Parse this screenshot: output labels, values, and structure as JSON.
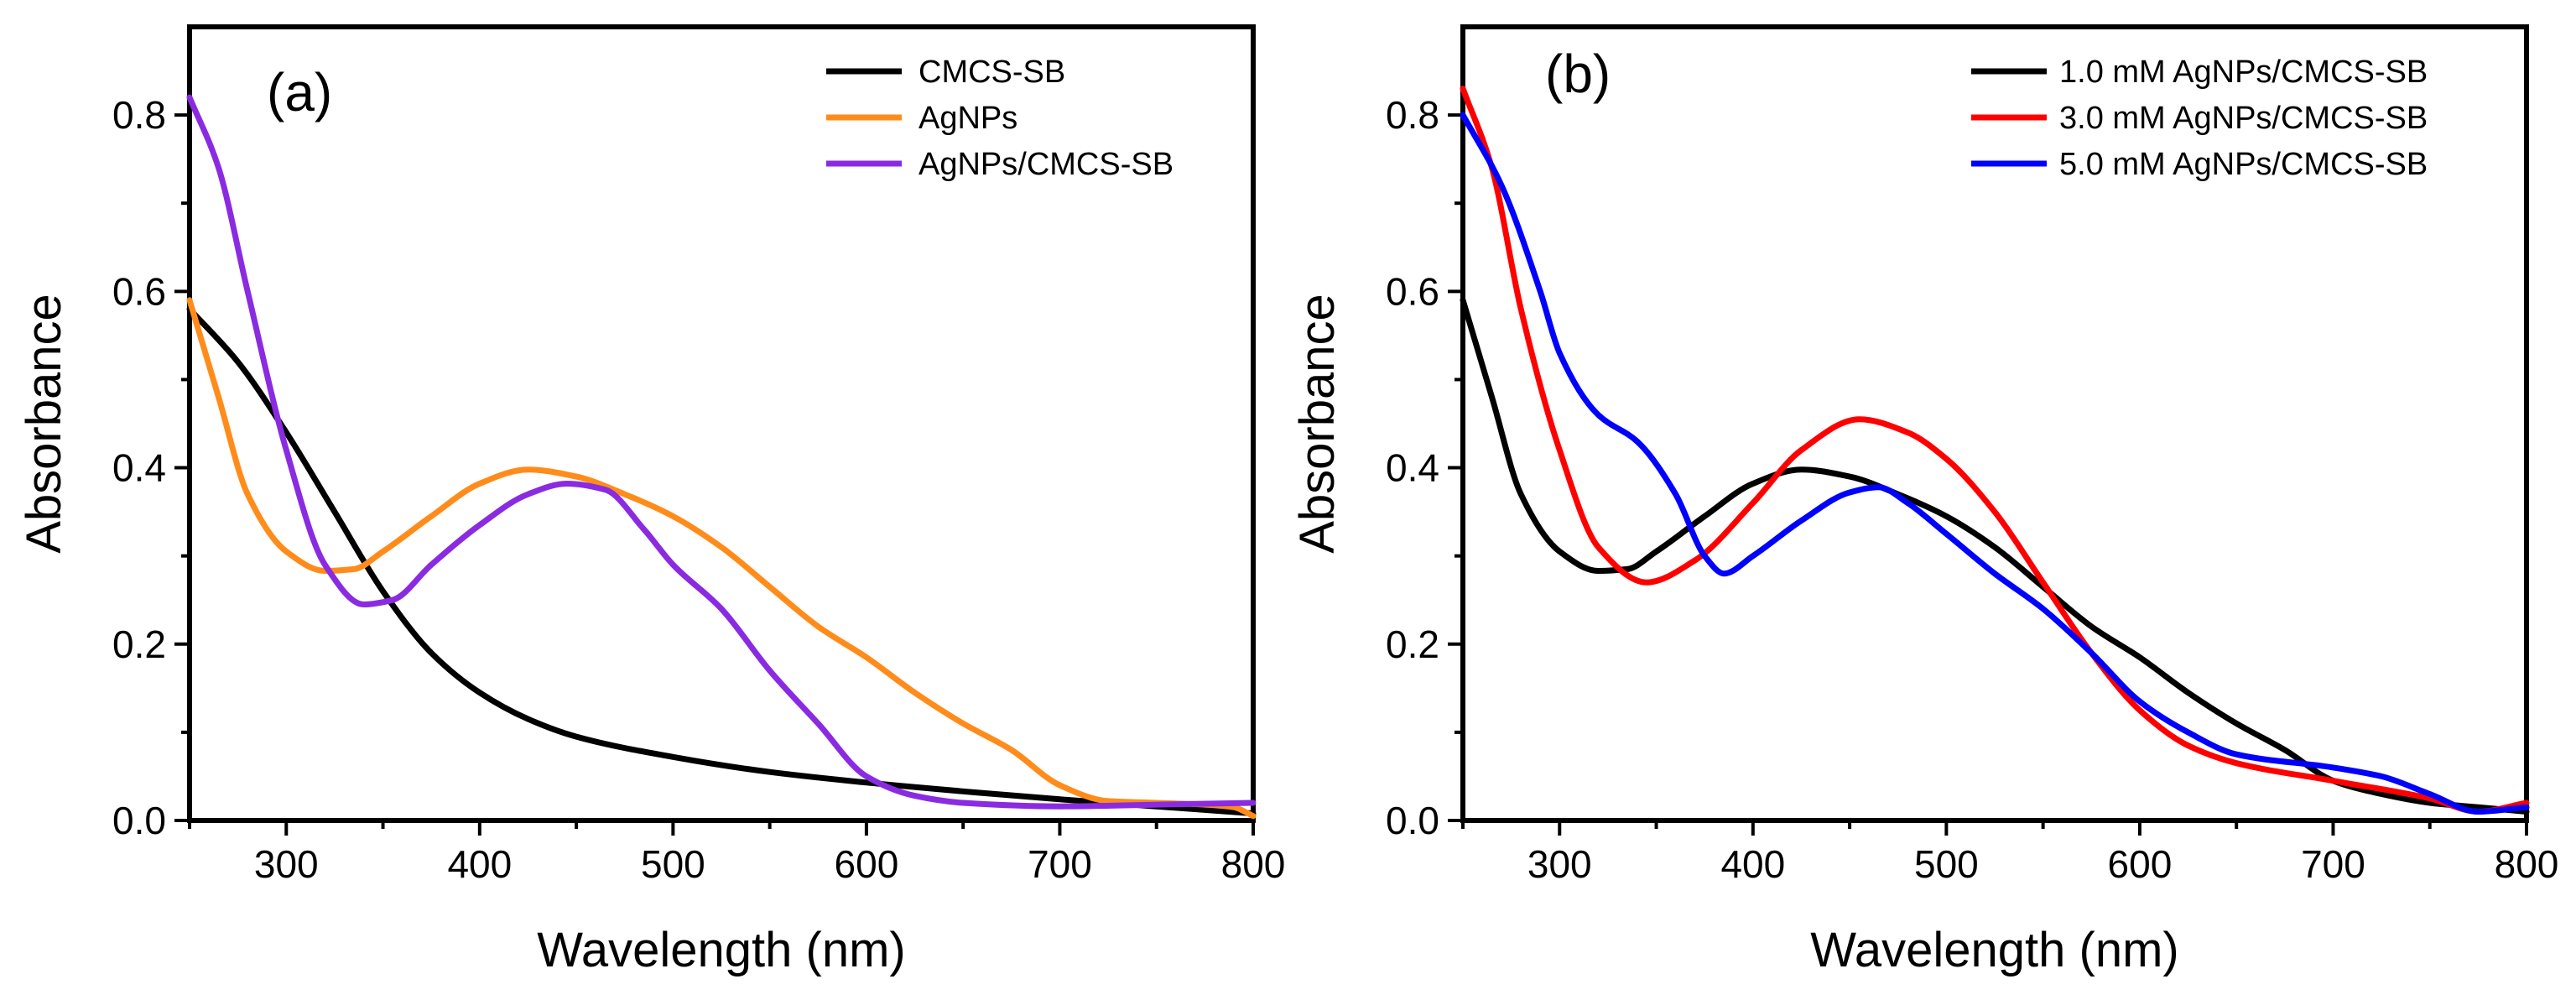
{
  "chart_data": [
    {
      "type": "line",
      "panel_label": "(a)",
      "xlabel": "Wavelength (nm)",
      "ylabel": "Absorbance",
      "xlim": [
        250,
        800
      ],
      "ylim": [
        0.0,
        0.9
      ],
      "xticks": [
        300,
        400,
        500,
        600,
        700,
        800
      ],
      "xtick_labels": [
        "300",
        "400",
        "500",
        "600",
        "700",
        "800"
      ],
      "yticks": [
        0.0,
        0.2,
        0.4,
        0.6,
        0.8
      ],
      "ytick_labels": [
        "0.0",
        "0.2",
        "0.4",
        "0.6",
        "0.8"
      ],
      "legend_position": "top-right",
      "series": [
        {
          "name": "CMCS-SB",
          "color": "#000000",
          "points": [
            [
              250,
              0.58
            ],
            [
              275,
              0.52
            ],
            [
              300,
              0.44
            ],
            [
              325,
              0.35
            ],
            [
              350,
              0.26
            ],
            [
              375,
              0.19
            ],
            [
              400,
              0.145
            ],
            [
              425,
              0.115
            ],
            [
              450,
              0.095
            ],
            [
              500,
              0.072
            ],
            [
              550,
              0.055
            ],
            [
              600,
              0.043
            ],
            [
              650,
              0.033
            ],
            [
              700,
              0.024
            ],
            [
              750,
              0.016
            ],
            [
              800,
              0.008
            ]
          ]
        },
        {
          "name": "AgNPs",
          "color": "#FF8C1A",
          "points": [
            [
              250,
              0.59
            ],
            [
              265,
              0.48
            ],
            [
              280,
              0.37
            ],
            [
              300,
              0.305
            ],
            [
              320,
              0.283
            ],
            [
              335,
              0.285
            ],
            [
              350,
              0.305
            ],
            [
              375,
              0.345
            ],
            [
              400,
              0.382
            ],
            [
              425,
              0.398
            ],
            [
              450,
              0.39
            ],
            [
              475,
              0.37
            ],
            [
              500,
              0.345
            ],
            [
              525,
              0.31
            ],
            [
              550,
              0.265
            ],
            [
              575,
              0.22
            ],
            [
              600,
              0.185
            ],
            [
              625,
              0.145
            ],
            [
              650,
              0.11
            ],
            [
              675,
              0.08
            ],
            [
              700,
              0.04
            ],
            [
              725,
              0.022
            ],
            [
              750,
              0.02
            ],
            [
              775,
              0.018
            ],
            [
              790,
              0.015
            ],
            [
              800,
              0.005
            ]
          ]
        },
        {
          "name": "AgNPs/CMCS-SB",
          "color": "#8A2BE2",
          "points": [
            [
              250,
              0.82
            ],
            [
              265,
              0.74
            ],
            [
              280,
              0.6
            ],
            [
              300,
              0.42
            ],
            [
              320,
              0.29
            ],
            [
              340,
              0.245
            ],
            [
              355,
              0.25
            ],
            [
              375,
              0.29
            ],
            [
              400,
              0.335
            ],
            [
              425,
              0.37
            ],
            [
              445,
              0.382
            ],
            [
              465,
              0.375
            ],
            [
              485,
              0.33
            ],
            [
              500,
              0.29
            ],
            [
              525,
              0.24
            ],
            [
              550,
              0.17
            ],
            [
              575,
              0.11
            ],
            [
              600,
              0.05
            ],
            [
              625,
              0.028
            ],
            [
              650,
              0.02
            ],
            [
              700,
              0.016
            ],
            [
              750,
              0.018
            ],
            [
              800,
              0.02
            ]
          ]
        }
      ]
    },
    {
      "type": "line",
      "panel_label": "(b)",
      "xlabel": "Wavelength (nm)",
      "ylabel": "Absorbance",
      "xlim": [
        250,
        800
      ],
      "ylim": [
        0.0,
        0.9
      ],
      "xticks": [
        300,
        400,
        500,
        600,
        700,
        800
      ],
      "xtick_labels": [
        "300",
        "400",
        "500",
        "600",
        "700",
        "800"
      ],
      "yticks": [
        0.0,
        0.2,
        0.4,
        0.6,
        0.8
      ],
      "ytick_labels": [
        "0.0",
        "0.2",
        "0.4",
        "0.6",
        "0.8"
      ],
      "legend_position": "top-right",
      "series": [
        {
          "name": "1.0 mM AgNPs/CMCS-SB",
          "color": "#000000",
          "points": [
            [
              250,
              0.59
            ],
            [
              265,
              0.48
            ],
            [
              280,
              0.37
            ],
            [
              300,
              0.305
            ],
            [
              320,
              0.283
            ],
            [
              335,
              0.285
            ],
            [
              350,
              0.305
            ],
            [
              375,
              0.345
            ],
            [
              400,
              0.382
            ],
            [
              425,
              0.398
            ],
            [
              450,
              0.39
            ],
            [
              475,
              0.37
            ],
            [
              500,
              0.345
            ],
            [
              525,
              0.31
            ],
            [
              550,
              0.265
            ],
            [
              575,
              0.22
            ],
            [
              600,
              0.185
            ],
            [
              625,
              0.145
            ],
            [
              650,
              0.11
            ],
            [
              675,
              0.08
            ],
            [
              700,
              0.045
            ],
            [
              725,
              0.03
            ],
            [
              750,
              0.02
            ],
            [
              775,
              0.015
            ],
            [
              800,
              0.01
            ]
          ]
        },
        {
          "name": "3.0 mM AgNPs/CMCS-SB",
          "color": "#FF0000",
          "points": [
            [
              250,
              0.83
            ],
            [
              265,
              0.74
            ],
            [
              280,
              0.58
            ],
            [
              300,
              0.42
            ],
            [
              320,
              0.31
            ],
            [
              345,
              0.27
            ],
            [
              370,
              0.295
            ],
            [
              400,
              0.36
            ],
            [
              425,
              0.42
            ],
            [
              455,
              0.455
            ],
            [
              480,
              0.44
            ],
            [
              500,
              0.41
            ],
            [
              525,
              0.35
            ],
            [
              550,
              0.27
            ],
            [
              575,
              0.19
            ],
            [
              600,
              0.125
            ],
            [
              625,
              0.085
            ],
            [
              650,
              0.065
            ],
            [
              700,
              0.045
            ],
            [
              750,
              0.025
            ],
            [
              775,
              0.01
            ],
            [
              800,
              0.02
            ]
          ]
        },
        {
          "name": "5.0 mM AgNPs/CMCS-SB",
          "color": "#0000FF",
          "points": [
            [
              250,
              0.8
            ],
            [
              270,
              0.72
            ],
            [
              290,
              0.6
            ],
            [
              300,
              0.53
            ],
            [
              320,
              0.46
            ],
            [
              340,
              0.43
            ],
            [
              360,
              0.37
            ],
            [
              375,
              0.3
            ],
            [
              385,
              0.28
            ],
            [
              400,
              0.3
            ],
            [
              425,
              0.34
            ],
            [
              450,
              0.372
            ],
            [
              465,
              0.378
            ],
            [
              480,
              0.36
            ],
            [
              500,
              0.325
            ],
            [
              525,
              0.28
            ],
            [
              550,
              0.24
            ],
            [
              575,
              0.19
            ],
            [
              600,
              0.135
            ],
            [
              625,
              0.1
            ],
            [
              650,
              0.075
            ],
            [
              700,
              0.06
            ],
            [
              725,
              0.05
            ],
            [
              750,
              0.03
            ],
            [
              775,
              0.01
            ],
            [
              800,
              0.015
            ]
          ]
        }
      ]
    }
  ]
}
